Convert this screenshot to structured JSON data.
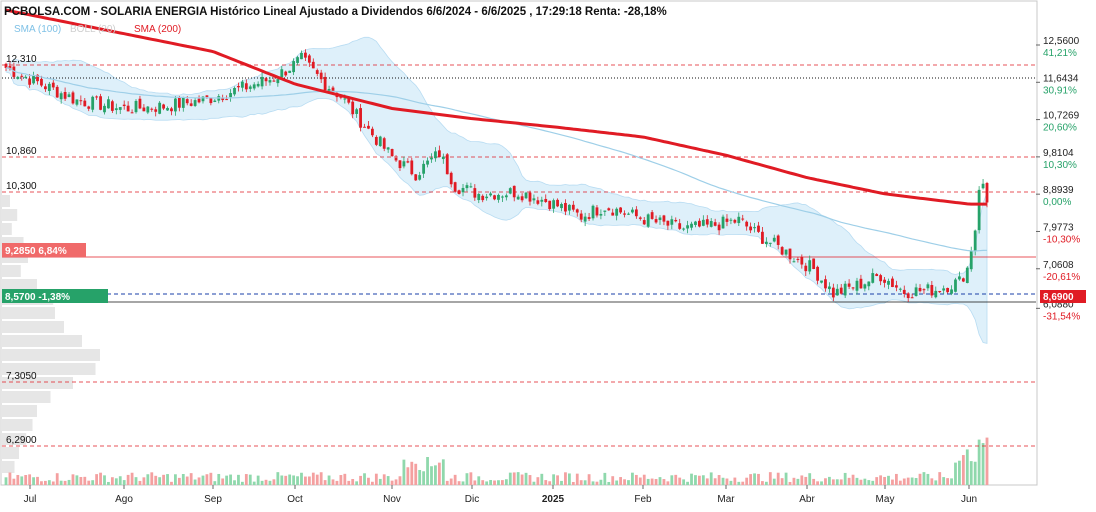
{
  "chart_data": {
    "type": "candlestick",
    "title": "PCBOLSA.COM - SOLARIA ENERGIA Histórico Lineal Ajustado a Dividendos 6/6/2024 - 6/6/2025 , 17:29:18 Renta: -28,18%",
    "legend": [
      "SMA (100)",
      "BOLL (20)",
      "SMA (200)"
    ],
    "ylim": [
      5.85,
      12.85
    ],
    "x_labels": [
      "Jul",
      "Ago",
      "Sep",
      "Oct",
      "Nov",
      "Dic",
      "2025",
      "Feb",
      "Mar",
      "Abr",
      "May",
      "Jun"
    ],
    "right_ticks": [
      {
        "price": "12,5600",
        "pct": "41,21%"
      },
      {
        "price": "11,6434",
        "pct": "30,91%"
      },
      {
        "price": "10,7269",
        "pct": "20,60%"
      },
      {
        "price": "9,8104",
        "pct": "10,30%"
      },
      {
        "price": "8,8939",
        "pct": "0,00%"
      },
      {
        "price": "7,9773",
        "pct": "-10,30%"
      },
      {
        "price": "7,0608",
        "pct": "-20,61%"
      },
      {
        "price": "6,0880",
        "pct": "-31,54%"
      }
    ],
    "levels": [
      "12,310",
      "10,860",
      "10,300",
      "7,3050",
      "6,2900"
    ],
    "badges": {
      "current": "8,6900",
      "left_upper": "9,2850  6,84%",
      "left_lower": "8,5700  -1,38%"
    },
    "series": {
      "close_monthly_approx": [
        {
          "month": "Jul",
          "close": 11.6
        },
        {
          "month": "Ago",
          "close": 11.3
        },
        {
          "month": "Sep",
          "close": 11.7
        },
        {
          "month": "Oct",
          "close": 11.4
        },
        {
          "month": "Nov",
          "close": 9.8
        },
        {
          "month": "Dic",
          "close": 8.9
        },
        {
          "month": "2025",
          "close": 8.3
        },
        {
          "month": "Feb",
          "close": 7.9
        },
        {
          "month": "Mar",
          "close": 7.6
        },
        {
          "month": "Abr",
          "close": 6.7
        },
        {
          "month": "May",
          "close": 6.6
        },
        {
          "month": "Jun",
          "close": 8.69
        }
      ],
      "sma200_monthly_approx": [
        {
          "month": "Jul",
          "value": 13.3
        },
        {
          "month": "Sep",
          "value": 12.4
        },
        {
          "month": "Oct",
          "value": 11.6
        },
        {
          "month": "Nov",
          "value": 11.0
        },
        {
          "month": "Dic",
          "value": 10.75
        },
        {
          "month": "2025",
          "value": 10.55
        },
        {
          "month": "Feb",
          "value": 10.3
        },
        {
          "month": "Mar",
          "value": 9.85
        },
        {
          "month": "Abr",
          "value": 9.3
        },
        {
          "month": "May",
          "value": 8.9
        },
        {
          "month": "Jun",
          "value": 8.65
        }
      ]
    },
    "colors": {
      "up": "#26a269",
      "down": "#e01b24",
      "sma200": "#e01b24",
      "sma100": "#9ecfe8",
      "boll": "#d6ecf9",
      "volume_up": "#8fd8ac",
      "volume_down": "#f4a0a0"
    }
  }
}
